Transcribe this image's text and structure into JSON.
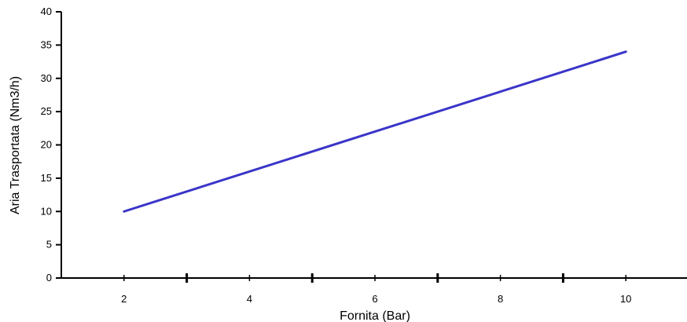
{
  "chart_data": {
    "type": "line",
    "xlabel": "Fornita (Bar)",
    "ylabel": "Aria Trasportata (Nm3/h)",
    "xlim": [
      1,
      11
    ],
    "ylim": [
      0,
      40
    ],
    "x_ticks": [
      2,
      4,
      6,
      8,
      10
    ],
    "y_ticks": [
      0,
      5,
      10,
      15,
      20,
      25,
      30,
      35,
      40
    ],
    "x_minor_ticks": [
      3,
      5,
      7,
      9
    ],
    "grid": false,
    "series": [
      {
        "x": [
          2,
          10
        ],
        "y": [
          10,
          34
        ],
        "color": "#3b35c8"
      }
    ]
  }
}
